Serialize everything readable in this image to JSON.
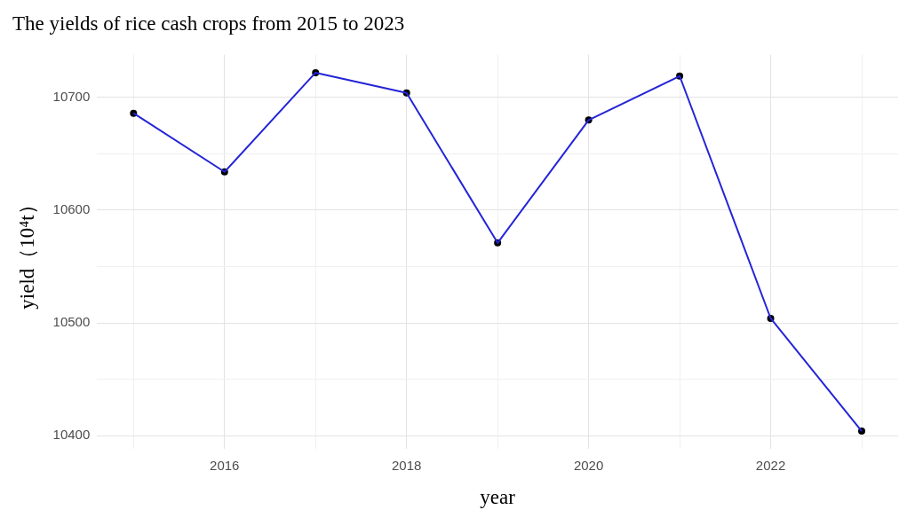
{
  "chart_data": {
    "type": "line",
    "title": "The yields of rice cash crops from 2015 to 2023",
    "xlabel": "year",
    "ylabel": "yield（10⁴t）",
    "x": [
      2015,
      2016,
      2017,
      2018,
      2019,
      2020,
      2021,
      2022,
      2023
    ],
    "series": [
      {
        "color": "#2424d8",
        "marker": "none",
        "values": [
          10686,
          10634,
          10722,
          10704,
          10571,
          10680,
          10719,
          10504,
          10404
        ]
      },
      {
        "type": "scatter",
        "color": "#000000",
        "marker": "circle",
        "values": [
          10686,
          10634,
          10722,
          10704,
          10571,
          10680,
          10719,
          10504,
          10404
        ]
      }
    ],
    "xlim": [
      2014.6,
      2023.4
    ],
    "xticks": [
      {
        "value": 2015,
        "label": null
      },
      2016,
      {
        "value": 2017,
        "label": null
      },
      2018,
      {
        "value": 2019,
        "label": null
      },
      2020,
      {
        "value": 2021,
        "label": null
      },
      2022,
      {
        "value": 2023,
        "label": null
      }
    ],
    "ylim": [
      10388,
      10738
    ],
    "yticks": [
      10400,
      {
        "value": 10450,
        "label": null
      },
      10500,
      {
        "value": 10550,
        "label": null
      },
      10600,
      {
        "value": 10650,
        "label": null
      },
      10700
    ],
    "grid": true,
    "legend": false
  }
}
